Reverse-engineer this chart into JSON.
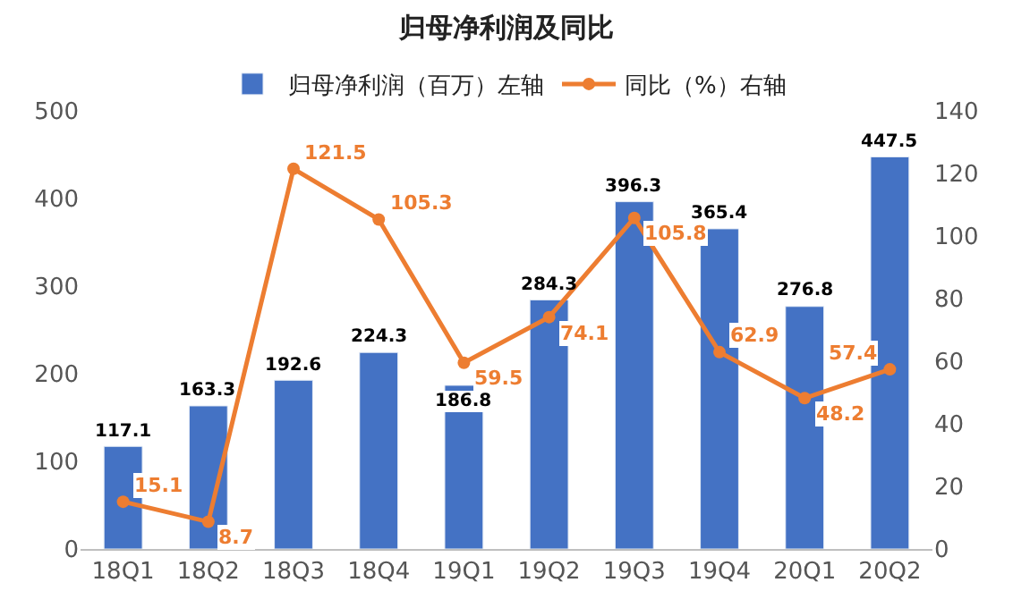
{
  "chart_data": {
    "type": "bar",
    "title": "归母净利润及同比",
    "categories": [
      "18Q1",
      "18Q2",
      "18Q3",
      "18Q4",
      "19Q1",
      "19Q2",
      "19Q3",
      "19Q4",
      "20Q1",
      "20Q2"
    ],
    "series": [
      {
        "name": "归母净利润（百万）左轴",
        "color": "#4472c4",
        "values": [
          117.1,
          163.3,
          192.6,
          224.3,
          186.8,
          284.3,
          396.3,
          365.4,
          276.8,
          447.5
        ]
      },
      {
        "name": "同比（%）右轴",
        "type": "line",
        "axis": "y2",
        "color": "#ed7d31",
        "values": [
          15.1,
          8.7,
          121.5,
          105.3,
          59.5,
          74.1,
          105.8,
          62.9,
          48.2,
          57.4
        ]
      }
    ],
    "ylim": [
      0,
      500
    ],
    "yticks": [
      0,
      100,
      200,
      300,
      400,
      500
    ],
    "y2lim": [
      0,
      140
    ],
    "y2ticks": [
      0,
      20,
      40,
      60,
      80,
      100,
      120,
      140
    ],
    "data_labels": true,
    "legend": "top",
    "grid": false,
    "marker": "circle",
    "line_style": "solid"
  }
}
